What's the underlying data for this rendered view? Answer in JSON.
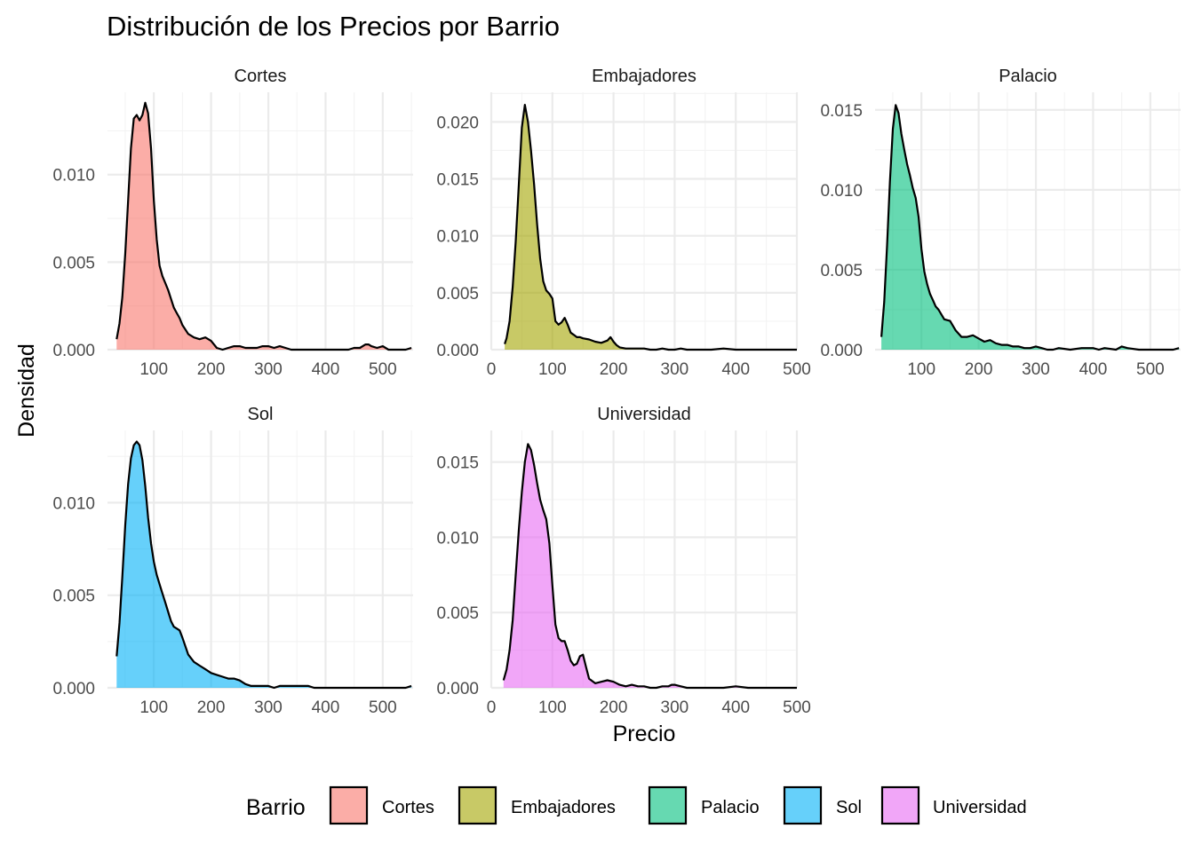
{
  "title": "Distribución de los Precios por Barrio",
  "xlabel": "Precio",
  "ylabel": "Densidad",
  "legend": {
    "title": "Barrio",
    "items": [
      {
        "label": "Cortes",
        "color": "#F8766D"
      },
      {
        "label": "Embajadores",
        "color": "#A3A500"
      },
      {
        "label": "Palacio",
        "color": "#00BF7D"
      },
      {
        "label": "Sol",
        "color": "#00B0F6"
      },
      {
        "label": "Universidad",
        "color": "#E76BF3"
      }
    ]
  },
  "chart_data": {
    "type": "area",
    "title": "Distribución de los Precios por Barrio",
    "xlabel": "Precio",
    "ylabel": "Densidad",
    "legend_placement": "bottom",
    "grid": true,
    "panels": [
      {
        "name": "Cortes",
        "color": "#F8766D",
        "fill_opacity": 0.6,
        "xlim": [
          19,
          553
        ],
        "ylim": [
          0,
          0.0147
        ],
        "x_ticks": [
          100,
          200,
          300,
          400,
          500
        ],
        "y_ticks": [
          0.0,
          0.005,
          0.01
        ],
        "y_tick_labels": [
          "0.000",
          "0.005",
          "0.010"
        ],
        "x": [
          35,
          40,
          45,
          50,
          55,
          60,
          65,
          70,
          75,
          80,
          85,
          90,
          95,
          100,
          105,
          110,
          115,
          120,
          125,
          130,
          135,
          140,
          145,
          150,
          160,
          170,
          180,
          190,
          200,
          210,
          220,
          230,
          240,
          250,
          260,
          270,
          280,
          290,
          300,
          310,
          320,
          330,
          340,
          350,
          360,
          380,
          400,
          420,
          440,
          450,
          460,
          470,
          475,
          480,
          490,
          500,
          510,
          520,
          530,
          540,
          550
        ],
        "y": [
          0.0006,
          0.0015,
          0.003,
          0.0055,
          0.0085,
          0.0115,
          0.0132,
          0.0134,
          0.0131,
          0.0134,
          0.0141,
          0.0135,
          0.0115,
          0.0085,
          0.0063,
          0.0048,
          0.0042,
          0.0038,
          0.0034,
          0.0029,
          0.0024,
          0.0021,
          0.0018,
          0.0014,
          0.0009,
          0.0007,
          0.0006,
          0.0007,
          0.0005,
          0.0001,
          0.0,
          0.0001,
          0.0002,
          0.0002,
          0.0001,
          0.0001,
          0.0001,
          0.0002,
          0.0002,
          0.0001,
          0.0002,
          0.0001,
          0.0,
          0.0,
          0.0,
          0.0,
          0.0,
          0.0,
          0.0,
          0.0001,
          0.0001,
          0.0003,
          0.0003,
          0.0002,
          0.0001,
          0.0002,
          0.0,
          0.0,
          0.0,
          0.0,
          0.0001
        ]
      },
      {
        "name": "Embajadores",
        "color": "#A3A500",
        "fill_opacity": 0.6,
        "xlim": [
          0,
          500
        ],
        "ylim": [
          0,
          0.0226
        ],
        "x_ticks": [
          0,
          100,
          200,
          300,
          400,
          500
        ],
        "y_ticks": [
          0.0,
          0.005,
          0.01,
          0.015,
          0.02
        ],
        "y_tick_labels": [
          "0.000",
          "0.005",
          "0.010",
          "0.015",
          "0.020"
        ],
        "x": [
          22,
          25,
          30,
          35,
          40,
          45,
          50,
          55,
          60,
          65,
          70,
          75,
          80,
          85,
          90,
          95,
          100,
          105,
          110,
          115,
          120,
          125,
          130,
          135,
          140,
          145,
          150,
          160,
          170,
          180,
          190,
          195,
          200,
          205,
          210,
          220,
          230,
          240,
          250,
          260,
          270,
          280,
          290,
          300,
          310,
          320,
          340,
          360,
          380,
          400,
          420,
          440,
          460,
          480,
          500
        ],
        "y": [
          0.0005,
          0.001,
          0.0025,
          0.0055,
          0.0095,
          0.0145,
          0.0195,
          0.0215,
          0.02,
          0.0175,
          0.0145,
          0.011,
          0.008,
          0.006,
          0.0052,
          0.0049,
          0.0045,
          0.0025,
          0.0022,
          0.0024,
          0.0028,
          0.0022,
          0.0015,
          0.0013,
          0.0011,
          0.0011,
          0.001,
          0.0009,
          0.0007,
          0.0006,
          0.0008,
          0.0011,
          0.0007,
          0.0004,
          0.0002,
          0.0001,
          0.0001,
          0.0001,
          0.0001,
          0.0,
          0.0,
          0.0001,
          0.0,
          0.0,
          0.0001,
          0.0,
          0.0,
          0.0,
          0.0001,
          0.0,
          0.0,
          0.0,
          0.0,
          0.0,
          0.0
        ]
      },
      {
        "name": "Palacio",
        "color": "#00BF7D",
        "fill_opacity": 0.6,
        "xlim": [
          19,
          553
        ],
        "ylim": [
          0,
          0.0161
        ],
        "x_ticks": [
          100,
          200,
          300,
          400,
          500
        ],
        "y_ticks": [
          0.0,
          0.005,
          0.01,
          0.015
        ],
        "y_tick_labels": [
          "0.000",
          "0.005",
          "0.010",
          "0.015"
        ],
        "x": [
          30,
          35,
          40,
          45,
          50,
          55,
          60,
          65,
          70,
          75,
          80,
          85,
          90,
          95,
          100,
          105,
          110,
          115,
          120,
          125,
          130,
          135,
          140,
          150,
          160,
          170,
          180,
          190,
          200,
          210,
          220,
          230,
          240,
          250,
          260,
          270,
          280,
          290,
          300,
          310,
          320,
          330,
          340,
          360,
          380,
          400,
          410,
          420,
          440,
          450,
          460,
          480,
          500,
          520,
          540,
          550
        ],
        "y": [
          0.0008,
          0.003,
          0.0065,
          0.0105,
          0.0138,
          0.0153,
          0.0148,
          0.0135,
          0.0125,
          0.0116,
          0.0109,
          0.0101,
          0.0095,
          0.0083,
          0.0063,
          0.0049,
          0.0041,
          0.0035,
          0.0031,
          0.0027,
          0.0025,
          0.0022,
          0.0019,
          0.0018,
          0.0012,
          0.0008,
          0.0008,
          0.0009,
          0.0007,
          0.0005,
          0.0006,
          0.0004,
          0.0003,
          0.0003,
          0.0002,
          0.0002,
          0.0001,
          0.0001,
          0.0002,
          0.0001,
          0.0,
          0.0,
          0.0001,
          0.0,
          0.0001,
          0.0001,
          0.0,
          0.0001,
          0.0,
          0.0002,
          0.0001,
          0.0,
          0.0,
          0.0,
          0.0,
          0.0001
        ]
      },
      {
        "name": "Sol",
        "color": "#00B0F6",
        "fill_opacity": 0.6,
        "xlim": [
          19,
          553
        ],
        "ylim": [
          0,
          0.0139
        ],
        "x_ticks": [
          100,
          200,
          300,
          400,
          500
        ],
        "y_ticks": [
          0.0,
          0.005,
          0.01
        ],
        "y_tick_labels": [
          "0.000",
          "0.005",
          "0.010"
        ],
        "x": [
          35,
          40,
          45,
          50,
          55,
          60,
          65,
          70,
          75,
          80,
          85,
          90,
          95,
          100,
          105,
          110,
          115,
          120,
          125,
          130,
          135,
          140,
          145,
          150,
          160,
          170,
          180,
          190,
          200,
          210,
          220,
          230,
          240,
          250,
          260,
          270,
          280,
          290,
          300,
          310,
          320,
          340,
          360,
          370,
          380,
          400,
          420,
          440,
          460,
          480,
          500,
          520,
          540,
          550
        ],
        "y": [
          0.0017,
          0.0035,
          0.006,
          0.0088,
          0.011,
          0.0124,
          0.0131,
          0.0133,
          0.0131,
          0.0123,
          0.0109,
          0.0092,
          0.0078,
          0.0068,
          0.0061,
          0.0056,
          0.0051,
          0.0046,
          0.0041,
          0.0036,
          0.0033,
          0.0032,
          0.0031,
          0.0027,
          0.0018,
          0.0014,
          0.0012,
          0.001,
          0.0008,
          0.0007,
          0.0006,
          0.0005,
          0.0005,
          0.0004,
          0.0002,
          0.0001,
          0.0001,
          0.0001,
          0.0001,
          0.0,
          0.0001,
          0.0001,
          0.0001,
          0.0001,
          0.0,
          0.0,
          0.0,
          0.0,
          0.0,
          0.0,
          0.0,
          0.0,
          0.0,
          0.0001
        ]
      },
      {
        "name": "Universidad",
        "color": "#E76BF3",
        "fill_opacity": 0.6,
        "xlim": [
          0,
          500
        ],
        "ylim": [
          0,
          0.0171
        ],
        "x_ticks": [
          0,
          100,
          200,
          300,
          400,
          500
        ],
        "y_ticks": [
          0.0,
          0.005,
          0.01,
          0.015
        ],
        "y_tick_labels": [
          "0.000",
          "0.005",
          "0.010",
          "0.015"
        ],
        "x": [
          20,
          25,
          30,
          35,
          40,
          45,
          50,
          55,
          60,
          65,
          70,
          75,
          80,
          85,
          90,
          95,
          100,
          105,
          110,
          115,
          120,
          125,
          130,
          135,
          140,
          145,
          150,
          155,
          160,
          170,
          180,
          190,
          200,
          210,
          220,
          230,
          240,
          250,
          260,
          270,
          280,
          290,
          295,
          300,
          310,
          320,
          340,
          360,
          380,
          400,
          420,
          440,
          460,
          480,
          500
        ],
        "y": [
          0.0005,
          0.0012,
          0.0025,
          0.0045,
          0.0075,
          0.0105,
          0.013,
          0.015,
          0.0162,
          0.0158,
          0.0148,
          0.0136,
          0.0125,
          0.0118,
          0.0112,
          0.0096,
          0.0068,
          0.0042,
          0.0033,
          0.0031,
          0.0031,
          0.0025,
          0.0018,
          0.0015,
          0.0016,
          0.0021,
          0.0022,
          0.0014,
          0.0006,
          0.0003,
          0.0004,
          0.0005,
          0.0004,
          0.0002,
          0.0001,
          0.0002,
          0.0001,
          0.0001,
          0.0,
          0.0,
          0.0001,
          0.0001,
          0.0002,
          0.0002,
          0.0001,
          0.0,
          0.0,
          0.0,
          0.0,
          0.0001,
          0.0,
          0.0,
          0.0,
          0.0,
          0.0
        ]
      }
    ]
  }
}
